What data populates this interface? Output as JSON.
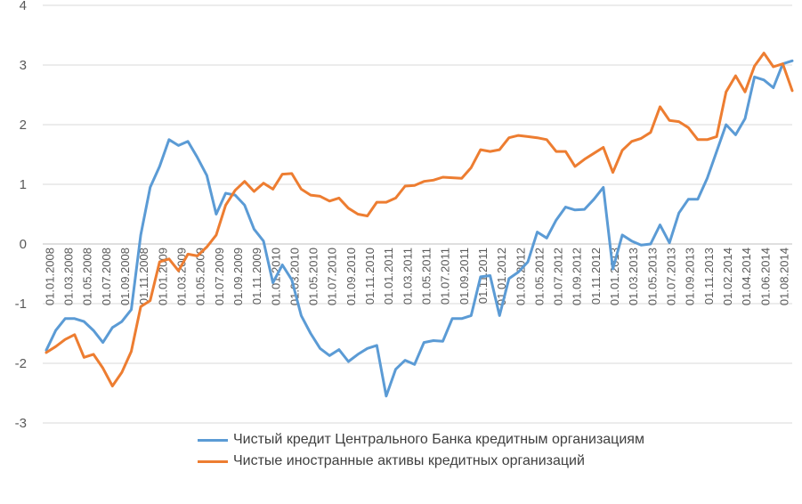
{
  "chart_data": {
    "type": "line",
    "ylim": [
      -3,
      4
    ],
    "yticks": [
      4,
      3,
      2,
      1,
      0,
      -1,
      -2,
      -3
    ],
    "grid": true,
    "legend_position": "bottom",
    "tick_labels": [
      "01.01.2008",
      "01.03.2008",
      "01.05.2008",
      "01.07.2008",
      "01.09.2008",
      "01.11.2008",
      "01.01.2009",
      "01.03.2009",
      "01.05.2009",
      "01.07.2009",
      "01.09.2009",
      "01.11.2009",
      "01.01.2010",
      "01.03.2010",
      "01.05.2010",
      "01.07.2010",
      "01.09.2010",
      "01.11.2010",
      "01.01.2011",
      "01.03.2011",
      "01.05.2011",
      "01.07.2011",
      "01.09.2011",
      "01.11.2011",
      "01.01.2012",
      "01.03.2012",
      "01.05.2012",
      "01.07.2012",
      "01.09.2012",
      "01.11.2012",
      "01.01.2013",
      "01.03.2013",
      "01.05.2013",
      "01.07.2013",
      "01.09.2013",
      "01.11.2013",
      "01.02.2014",
      "01.04.2014",
      "01.06.2014",
      "01.08.2014"
    ],
    "series": [
      {
        "name": "Чистый кредит Центрального Банка кредитным организациям",
        "color": "#5b9bd5",
        "values": [
          -1.78,
          -1.45,
          -1.25,
          -1.25,
          -1.3,
          -1.45,
          -1.65,
          -1.4,
          -1.3,
          -1.1,
          0.15,
          0.95,
          1.3,
          1.75,
          1.65,
          1.72,
          1.45,
          1.15,
          0.5,
          0.85,
          0.82,
          0.65,
          0.25,
          0.05,
          -0.65,
          -0.35,
          -0.6,
          -1.2,
          -1.5,
          -1.75,
          -1.87,
          -1.77,
          -1.97,
          -1.85,
          -1.75,
          -1.7,
          -2.55,
          -2.1,
          -1.95,
          -2.02,
          -1.65,
          -1.62,
          -1.63,
          -1.25,
          -1.25,
          -1.2,
          -0.55,
          -0.53,
          -1.2,
          -0.58,
          -0.47,
          -0.3,
          0.2,
          0.1,
          0.4,
          0.62,
          0.57,
          0.58,
          0.75,
          0.95,
          -0.42,
          0.15,
          0.05,
          -0.02,
          0.0,
          0.32,
          0.02,
          0.52,
          0.75,
          0.75,
          1.1,
          1.55,
          2.0,
          1.83,
          2.1,
          2.8,
          2.75,
          2.62,
          3.02,
          3.07
        ]
      },
      {
        "name": "Чистые иностранные активы кредитных организаций",
        "color": "#ed7d31",
        "values": [
          -1.82,
          -1.72,
          -1.6,
          -1.52,
          -1.9,
          -1.85,
          -2.08,
          -2.38,
          -2.15,
          -1.8,
          -1.05,
          -0.95,
          -0.3,
          -0.25,
          -0.45,
          -0.17,
          -0.2,
          -0.05,
          0.15,
          0.65,
          0.9,
          1.05,
          0.88,
          1.02,
          0.92,
          1.17,
          1.18,
          0.92,
          0.82,
          0.8,
          0.72,
          0.77,
          0.6,
          0.5,
          0.47,
          0.7,
          0.7,
          0.77,
          0.97,
          0.98,
          1.05,
          1.07,
          1.12,
          1.11,
          1.1,
          1.28,
          1.58,
          1.55,
          1.58,
          1.78,
          1.82,
          1.8,
          1.78,
          1.75,
          1.55,
          1.55,
          1.3,
          1.42,
          1.52,
          1.62,
          1.2,
          1.57,
          1.72,
          1.77,
          1.87,
          2.3,
          2.07,
          2.05,
          1.95,
          1.75,
          1.75,
          1.8,
          2.55,
          2.82,
          2.55,
          2.98,
          3.2,
          2.97,
          3.02,
          2.57
        ]
      }
    ]
  }
}
